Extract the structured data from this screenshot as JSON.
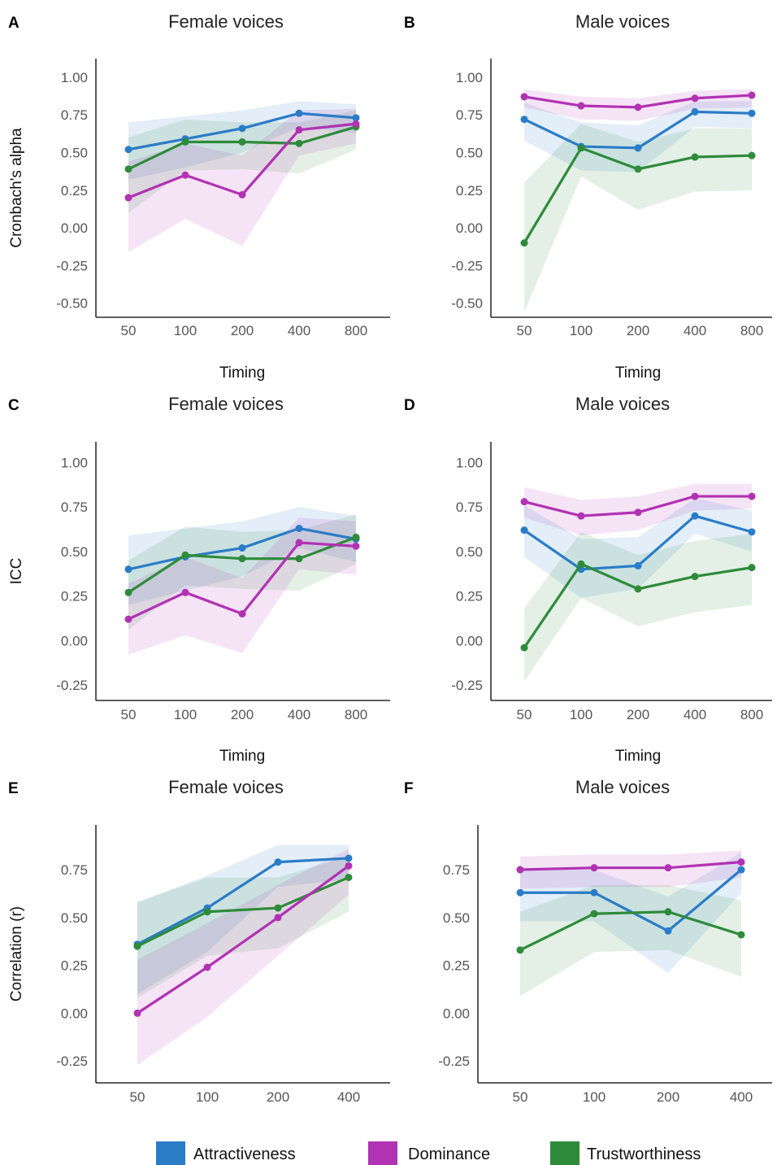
{
  "colors": {
    "attractiveness": "#2a7cc7",
    "dominance": "#b132b3",
    "trustworthiness": "#2e8b3a"
  },
  "legend": [
    {
      "key": "attractiveness",
      "label": "Attractiveness"
    },
    {
      "key": "dominance",
      "label": "Dominance"
    },
    {
      "key": "trustworthiness",
      "label": "Trustworthiness"
    }
  ],
  "chart_data": [
    {
      "panel": "A",
      "type": "line",
      "title": "Female voices",
      "xlabel": "Timing",
      "ylabel": "Cronbach's alpha",
      "categories": [
        "50",
        "100",
        "200",
        "400",
        "800"
      ],
      "yticks": [
        1.0,
        0.75,
        0.5,
        0.25,
        0.0,
        -0.25,
        -0.5
      ],
      "ytick_labels": [
        "1.00",
        "0.75",
        "0.50",
        "0.25",
        "0.00",
        "-0.25",
        "-0.50"
      ],
      "ylim": [
        -0.55,
        1.08
      ],
      "series": [
        {
          "key": "attractiveness",
          "name": "Attractiveness",
          "values": [
            0.52,
            0.59,
            0.66,
            0.76,
            0.73
          ],
          "lower": [
            0.32,
            0.4,
            0.5,
            0.67,
            0.63
          ],
          "upper": [
            0.7,
            0.74,
            0.78,
            0.84,
            0.82
          ]
        },
        {
          "key": "dominance",
          "name": "Dominance",
          "values": [
            0.2,
            0.35,
            0.22,
            0.65,
            0.69
          ],
          "lower": [
            -0.16,
            0.06,
            -0.12,
            0.48,
            0.56
          ],
          "upper": [
            0.44,
            0.56,
            0.48,
            0.78,
            0.79
          ]
        },
        {
          "key": "trustworthiness",
          "name": "Trustworthiness",
          "values": [
            0.39,
            0.57,
            0.57,
            0.56,
            0.67
          ],
          "lower": [
            0.1,
            0.38,
            0.39,
            0.36,
            0.52
          ],
          "upper": [
            0.6,
            0.72,
            0.7,
            0.7,
            0.78
          ]
        }
      ]
    },
    {
      "panel": "B",
      "type": "line",
      "title": "Male voices",
      "xlabel": "Timing",
      "ylabel": "",
      "categories": [
        "50",
        "100",
        "200",
        "400",
        "800"
      ],
      "yticks": [
        1.0,
        0.75,
        0.5,
        0.25,
        0.0,
        -0.25,
        -0.5
      ],
      "ytick_labels": [
        "1.00",
        "0.75",
        "0.50",
        "0.25",
        "0.00",
        "-0.25",
        "-0.50"
      ],
      "ylim": [
        -0.55,
        1.08
      ],
      "series": [
        {
          "key": "attractiveness",
          "name": "Attractiveness",
          "values": [
            0.72,
            0.54,
            0.53,
            0.77,
            0.76
          ],
          "lower": [
            0.58,
            0.38,
            0.37,
            0.67,
            0.66
          ],
          "upper": [
            0.83,
            0.7,
            0.68,
            0.84,
            0.84
          ]
        },
        {
          "key": "dominance",
          "name": "Dominance",
          "values": [
            0.87,
            0.81,
            0.8,
            0.86,
            0.88
          ],
          "lower": [
            0.8,
            0.72,
            0.71,
            0.79,
            0.8
          ],
          "upper": [
            0.92,
            0.87,
            0.86,
            0.91,
            0.92
          ]
        },
        {
          "key": "trustworthiness",
          "name": "Trustworthiness",
          "values": [
            -0.1,
            0.53,
            0.39,
            0.47,
            0.48
          ],
          "lower": [
            -0.56,
            0.34,
            0.12,
            0.24,
            0.25
          ],
          "upper": [
            0.3,
            0.69,
            0.57,
            0.66,
            0.66
          ]
        }
      ]
    },
    {
      "panel": "C",
      "type": "line",
      "title": "Female voices",
      "xlabel": "Timing",
      "ylabel": "ICC",
      "categories": [
        "50",
        "100",
        "200",
        "400",
        "800"
      ],
      "yticks": [
        1.0,
        0.75,
        0.5,
        0.25,
        0.0,
        -0.25
      ],
      "ytick_labels": [
        "1.00",
        "0.75",
        "0.50",
        "0.25",
        "0.00",
        "-0.25"
      ],
      "ylim": [
        -0.3,
        1.08
      ],
      "series": [
        {
          "key": "attractiveness",
          "name": "Attractiveness",
          "values": [
            0.4,
            0.47,
            0.52,
            0.63,
            0.57
          ],
          "lower": [
            0.2,
            0.28,
            0.36,
            0.52,
            0.44
          ],
          "upper": [
            0.59,
            0.63,
            0.67,
            0.75,
            0.7
          ]
        },
        {
          "key": "dominance",
          "name": "Dominance",
          "values": [
            0.12,
            0.27,
            0.15,
            0.55,
            0.53
          ],
          "lower": [
            -0.08,
            0.03,
            -0.07,
            0.4,
            0.37
          ],
          "upper": [
            0.32,
            0.47,
            0.35,
            0.69,
            0.67
          ]
        },
        {
          "key": "trustworthiness",
          "name": "Trustworthiness",
          "values": [
            0.27,
            0.48,
            0.46,
            0.46,
            0.58
          ],
          "lower": [
            0.06,
            0.31,
            0.29,
            0.28,
            0.43
          ],
          "upper": [
            0.45,
            0.64,
            0.61,
            0.62,
            0.71
          ]
        }
      ]
    },
    {
      "panel": "D",
      "type": "line",
      "title": "Male voices",
      "xlabel": "Timing",
      "ylabel": "",
      "categories": [
        "50",
        "100",
        "200",
        "400",
        "800"
      ],
      "yticks": [
        1.0,
        0.75,
        0.5,
        0.25,
        0.0,
        -0.25
      ],
      "ytick_labels": [
        "1.00",
        "0.75",
        "0.50",
        "0.25",
        "0.00",
        "-0.25"
      ],
      "ylim": [
        -0.3,
        1.08
      ],
      "series": [
        {
          "key": "attractiveness",
          "name": "Attractiveness",
          "values": [
            0.62,
            0.4,
            0.42,
            0.7,
            0.61
          ],
          "lower": [
            0.47,
            0.24,
            0.29,
            0.6,
            0.5
          ],
          "upper": [
            0.76,
            0.57,
            0.58,
            0.8,
            0.73
          ]
        },
        {
          "key": "dominance",
          "name": "Dominance",
          "values": [
            0.78,
            0.7,
            0.72,
            0.81,
            0.81
          ],
          "lower": [
            0.69,
            0.59,
            0.62,
            0.73,
            0.74
          ],
          "upper": [
            0.86,
            0.79,
            0.81,
            0.88,
            0.88
          ]
        },
        {
          "key": "trustworthiness",
          "name": "Trustworthiness",
          "values": [
            -0.04,
            0.43,
            0.29,
            0.36,
            0.41
          ],
          "lower": [
            -0.23,
            0.24,
            0.08,
            0.16,
            0.2
          ],
          "upper": [
            0.18,
            0.61,
            0.48,
            0.56,
            0.6
          ]
        }
      ]
    },
    {
      "panel": "E",
      "type": "line",
      "title": "Female voices",
      "xlabel": "",
      "ylabel": "Correlation (r)",
      "categories": [
        "50",
        "100",
        "200",
        "400"
      ],
      "yticks": [
        0.75,
        0.5,
        0.25,
        0.0,
        -0.25
      ],
      "ytick_labels": [
        "0.75",
        "0.50",
        "0.25",
        "0.00",
        "-0.25"
      ],
      "ylim": [
        -0.33,
        0.95
      ],
      "series": [
        {
          "key": "attractiveness",
          "name": "Attractiveness",
          "values": [
            0.36,
            0.55,
            0.79,
            0.81
          ],
          "lower": [
            0.1,
            0.32,
            0.66,
            0.7
          ],
          "upper": [
            0.58,
            0.72,
            0.88,
            0.88
          ]
        },
        {
          "key": "dominance",
          "name": "Dominance",
          "values": [
            0.0,
            0.24,
            0.5,
            0.77
          ],
          "lower": [
            -0.27,
            -0.02,
            0.3,
            0.62
          ],
          "upper": [
            0.28,
            0.47,
            0.67,
            0.86
          ]
        },
        {
          "key": "trustworthiness",
          "name": "Trustworthiness",
          "values": [
            0.35,
            0.53,
            0.55,
            0.71
          ],
          "lower": [
            0.08,
            0.3,
            0.34,
            0.53
          ],
          "upper": [
            0.58,
            0.71,
            0.71,
            0.82
          ]
        }
      ]
    },
    {
      "panel": "F",
      "type": "line",
      "title": "Male voices",
      "xlabel": "",
      "ylabel": "",
      "categories": [
        "50",
        "100",
        "200",
        "400"
      ],
      "yticks": [
        0.75,
        0.5,
        0.25,
        0.0,
        -0.25
      ],
      "ytick_labels": [
        "0.75",
        "0.50",
        "0.25",
        "0.00",
        "-0.25"
      ],
      "ylim": [
        -0.33,
        0.95
      ],
      "series": [
        {
          "key": "attractiveness",
          "name": "Attractiveness",
          "values": [
            0.63,
            0.63,
            0.43,
            0.75
          ],
          "lower": [
            0.48,
            0.48,
            0.21,
            0.63
          ],
          "upper": [
            0.75,
            0.75,
            0.61,
            0.84
          ]
        },
        {
          "key": "dominance",
          "name": "Dominance",
          "values": [
            0.75,
            0.76,
            0.76,
            0.79
          ],
          "lower": [
            0.65,
            0.66,
            0.66,
            0.71
          ],
          "upper": [
            0.82,
            0.83,
            0.83,
            0.85
          ]
        },
        {
          "key": "trustworthiness",
          "name": "Trustworthiness",
          "values": [
            0.33,
            0.52,
            0.53,
            0.41
          ],
          "lower": [
            0.09,
            0.32,
            0.33,
            0.19
          ],
          "upper": [
            0.53,
            0.67,
            0.67,
            0.59
          ]
        }
      ]
    }
  ]
}
